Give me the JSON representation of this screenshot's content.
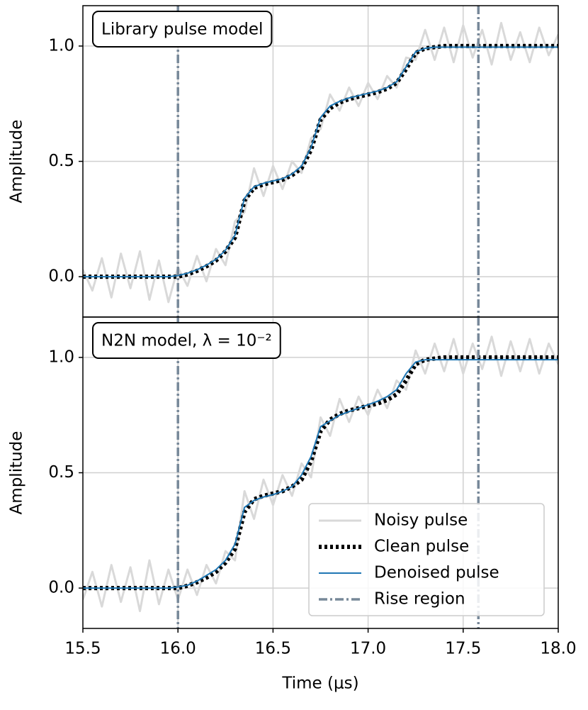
{
  "chart_data": [
    {
      "type": "line",
      "annotation": "Library pulse model",
      "ylabel": "Amplitude",
      "xlim": [
        15.5,
        18.0
      ],
      "ylim": [
        -0.175,
        1.175
      ],
      "yticks": [
        {
          "value": 0,
          "label": "0.0"
        },
        {
          "value": 0.5,
          "label": "0.5"
        },
        {
          "value": 1,
          "label": "1.0"
        }
      ],
      "xgrid": [
        16.0,
        16.5,
        17.0,
        17.5
      ],
      "grid": true,
      "x": [
        15.5,
        15.55,
        15.6,
        15.65,
        15.7,
        15.75,
        15.8,
        15.85,
        15.9,
        15.95,
        16.0,
        16.05,
        16.1,
        16.15,
        16.2,
        16.25,
        16.3,
        16.35,
        16.4,
        16.45,
        16.5,
        16.55,
        16.6,
        16.65,
        16.7,
        16.75,
        16.8,
        16.85,
        16.9,
        16.95,
        17.0,
        17.05,
        17.1,
        17.15,
        17.2,
        17.25,
        17.3,
        17.35,
        17.4,
        17.45,
        17.5,
        17.55,
        17.6,
        17.65,
        17.7,
        17.75,
        17.8,
        17.85,
        17.9,
        17.95,
        18.0
      ],
      "series": [
        {
          "color": "#d9d9d9",
          "style": "noisy",
          "values": [
            0.03,
            -0.06,
            0.08,
            -0.09,
            0.1,
            -0.05,
            0.11,
            -0.1,
            0.07,
            -0.11,
            0.04,
            -0.04,
            0.09,
            -0.02,
            0.12,
            0.05,
            0.24,
            0.28,
            0.47,
            0.35,
            0.48,
            0.38,
            0.5,
            0.45,
            0.6,
            0.64,
            0.79,
            0.72,
            0.82,
            0.74,
            0.84,
            0.77,
            0.87,
            0.82,
            0.95,
            0.94,
            1.07,
            0.94,
            1.08,
            0.93,
            1.09,
            0.95,
            1.07,
            0.92,
            1.1,
            0.94,
            1.06,
            0.93,
            1.08,
            0.96,
            1.05
          ]
        },
        {
          "color": "#000000",
          "style": "clean",
          "values": [
            0,
            0,
            0,
            0,
            0,
            0,
            0,
            0,
            0,
            0,
            0,
            0.01,
            0.025,
            0.045,
            0.07,
            0.11,
            0.17,
            0.33,
            0.385,
            0.4,
            0.41,
            0.42,
            0.44,
            0.47,
            0.55,
            0.68,
            0.73,
            0.755,
            0.77,
            0.78,
            0.79,
            0.8,
            0.815,
            0.84,
            0.9,
            0.97,
            0.99,
            0.995,
            1,
            1,
            1,
            1,
            1,
            1,
            1,
            1,
            1,
            1,
            1,
            1,
            1
          ]
        },
        {
          "color": "#1f77b4",
          "style": "denoised",
          "values": [
            0,
            0,
            0,
            0,
            0,
            0,
            0,
            0,
            0,
            0,
            0.005,
            0.015,
            0.03,
            0.05,
            0.075,
            0.115,
            0.18,
            0.34,
            0.39,
            0.405,
            0.415,
            0.425,
            0.445,
            0.48,
            0.56,
            0.69,
            0.74,
            0.76,
            0.775,
            0.785,
            0.795,
            0.805,
            0.82,
            0.845,
            0.91,
            0.975,
            0.99,
            0.995,
            0.995,
            0.995,
            0.995,
            0.995,
            0.995,
            0.995,
            0.995,
            0.995,
            0.995,
            0.995,
            0.995,
            0.995,
            0.995
          ]
        }
      ],
      "vlines": {
        "color": "#778899",
        "x": [
          16.0,
          17.58
        ]
      }
    },
    {
      "type": "line",
      "annotation": "N2N model, λ = 10⁻²",
      "ylabel": "Amplitude",
      "xlabel": "Time (μs)",
      "xlim": [
        15.5,
        18.0
      ],
      "ylim": [
        -0.175,
        1.175
      ],
      "yticks": [
        {
          "value": 0,
          "label": "0.0"
        },
        {
          "value": 0.5,
          "label": "0.5"
        },
        {
          "value": 1,
          "label": "1.0"
        }
      ],
      "xticks": [
        15.5,
        {
          "value": 16,
          "label": "16.0"
        },
        16.5,
        {
          "value": 17,
          "label": "17.0"
        },
        17.5,
        {
          "value": 18,
          "label": "18.0"
        }
      ],
      "xgrid": [
        16.0,
        16.5,
        17.0,
        17.5
      ],
      "grid": true,
      "legend": "lower right",
      "x": [
        15.5,
        15.55,
        15.6,
        15.65,
        15.7,
        15.75,
        15.8,
        15.85,
        15.9,
        15.95,
        16.0,
        16.05,
        16.1,
        16.15,
        16.2,
        16.25,
        16.3,
        16.35,
        16.4,
        16.45,
        16.5,
        16.55,
        16.6,
        16.65,
        16.7,
        16.75,
        16.8,
        16.85,
        16.9,
        16.95,
        17.0,
        17.05,
        17.1,
        17.15,
        17.2,
        17.25,
        17.3,
        17.35,
        17.4,
        17.45,
        17.5,
        17.55,
        17.6,
        17.65,
        17.7,
        17.75,
        17.8,
        17.85,
        17.9,
        17.95,
        18.0
      ],
      "series": [
        {
          "name": "Noisy pulse",
          "color": "#d9d9d9",
          "style": "noisy",
          "values": [
            -0.05,
            0.07,
            -0.08,
            0.1,
            -0.06,
            0.09,
            -0.1,
            0.12,
            -0.07,
            0.08,
            -0.05,
            0.08,
            -0.03,
            0.1,
            0.02,
            0.16,
            0.12,
            0.42,
            0.3,
            0.47,
            0.36,
            0.49,
            0.4,
            0.54,
            0.48,
            0.74,
            0.66,
            0.82,
            0.72,
            0.83,
            0.75,
            0.86,
            0.78,
            0.9,
            0.86,
            1.03,
            0.93,
            1.06,
            0.94,
            1.08,
            0.93,
            1.06,
            0.95,
            1.09,
            0.92,
            1.07,
            0.94,
            1.08,
            0.93,
            1.06,
            0.97
          ]
        },
        {
          "name": "Clean pulse",
          "color": "#000000",
          "style": "clean",
          "values": [
            0,
            0,
            0,
            0,
            0,
            0,
            0,
            0,
            0,
            0,
            0,
            0.01,
            0.025,
            0.045,
            0.07,
            0.11,
            0.17,
            0.33,
            0.385,
            0.4,
            0.41,
            0.42,
            0.44,
            0.47,
            0.55,
            0.68,
            0.73,
            0.755,
            0.77,
            0.78,
            0.79,
            0.8,
            0.815,
            0.84,
            0.9,
            0.97,
            0.99,
            0.995,
            1,
            1,
            1,
            1,
            1,
            1,
            1,
            1,
            1,
            1,
            1,
            1,
            1
          ]
        },
        {
          "name": "Denoised pulse",
          "color": "#1f77b4",
          "style": "denoised",
          "values": [
            0,
            0,
            0,
            0,
            0,
            0,
            0,
            0,
            0,
            0,
            0.005,
            0.012,
            0.03,
            0.055,
            0.08,
            0.12,
            0.19,
            0.35,
            0.38,
            0.395,
            0.405,
            0.42,
            0.44,
            0.49,
            0.57,
            0.7,
            0.725,
            0.75,
            0.765,
            0.78,
            0.795,
            0.81,
            0.83,
            0.86,
            0.93,
            0.98,
            0.99,
            0.99,
            0.99,
            0.99,
            0.99,
            0.99,
            0.99,
            0.99,
            0.99,
            0.99,
            0.99,
            0.99,
            0.99,
            0.99,
            0.99
          ]
        }
      ],
      "vlines": {
        "name": "Rise region",
        "color": "#778899",
        "x": [
          16.0,
          17.58
        ]
      }
    }
  ]
}
